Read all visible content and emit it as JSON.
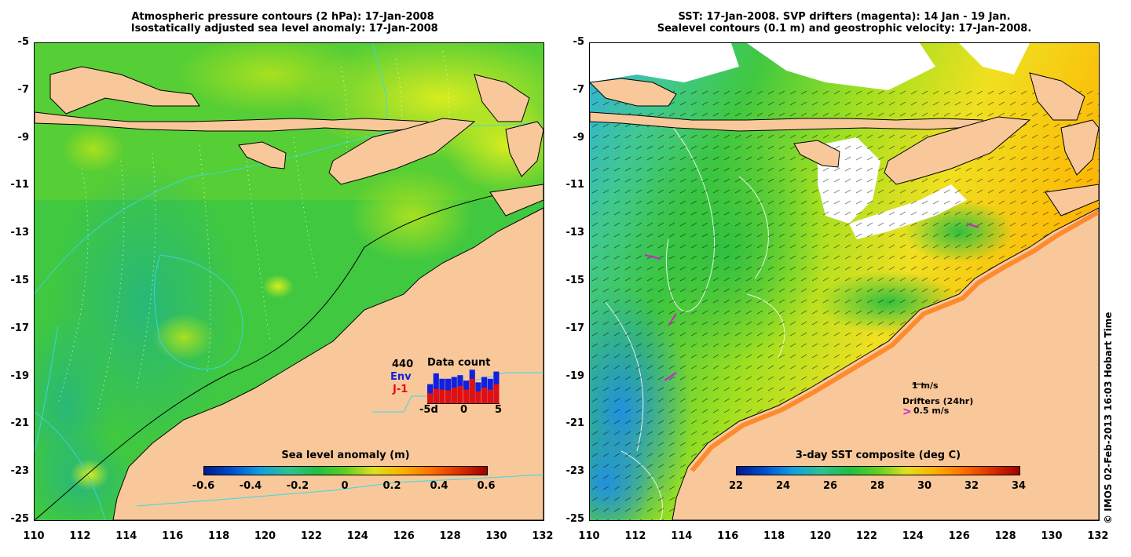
{
  "left_panel": {
    "title_line1": "Atmospheric pressure contours (2 hPa): 17-Jan-2008",
    "title_line2": " Isostatically adjusted sea level anomaly: 17-Jan-2008",
    "colorbar_title": "Sea level anomaly (m)",
    "colorbar_ticks": [
      "-0.6",
      "-0.4",
      "-0.2",
      "0",
      "0.2",
      "0.4",
      "0.6"
    ],
    "inset": {
      "count": "440",
      "env_label": "Env",
      "j1_label": "J-1",
      "title": "Data count",
      "x_ticks": [
        "-5d",
        "0",
        "5"
      ],
      "env_color": "#1020e0",
      "j1_color": "#e01010",
      "bars_total": [
        0.55,
        0.85,
        0.7,
        0.7,
        0.75,
        0.8,
        0.65,
        0.95,
        0.6,
        0.75,
        0.7,
        0.9
      ],
      "bars_j1": [
        0.3,
        0.42,
        0.4,
        0.38,
        0.45,
        0.5,
        0.4,
        0.7,
        0.35,
        0.45,
        0.4,
        0.55
      ]
    }
  },
  "right_panel": {
    "title_line1": "SST: 17-Jan-2008. SVP drifters (magenta): 14 Jan - 19 Jan.",
    "title_line2": "Sealevel contours (0.1 m) and geostrophic velocity: 17-Jan-2008.",
    "colorbar_title": "3-day SST composite (deg C)",
    "colorbar_ticks": [
      "22",
      "24",
      "26",
      "28",
      "30",
      "32",
      "34"
    ],
    "velocity_legend": "1 m/s",
    "drifter_legend_title": "Drifters (24hr)",
    "drifter_legend_value": "0.5 m/s",
    "drifter_color": "#d020d0"
  },
  "axes": {
    "y_ticks": [
      "-5",
      "-7",
      "-9",
      "-11",
      "-13",
      "-15",
      "-17",
      "-19",
      "-21",
      "-23",
      "-25"
    ],
    "x_ticks": [
      "110",
      "112",
      "114",
      "116",
      "118",
      "120",
      "122",
      "124",
      "126",
      "128",
      "130",
      "132"
    ]
  },
  "colors": {
    "land": "#f8c89a",
    "cloud": "#ffffff"
  },
  "credit": "© IMOS 02-Feb-2013 16:03 Hobart Time"
}
